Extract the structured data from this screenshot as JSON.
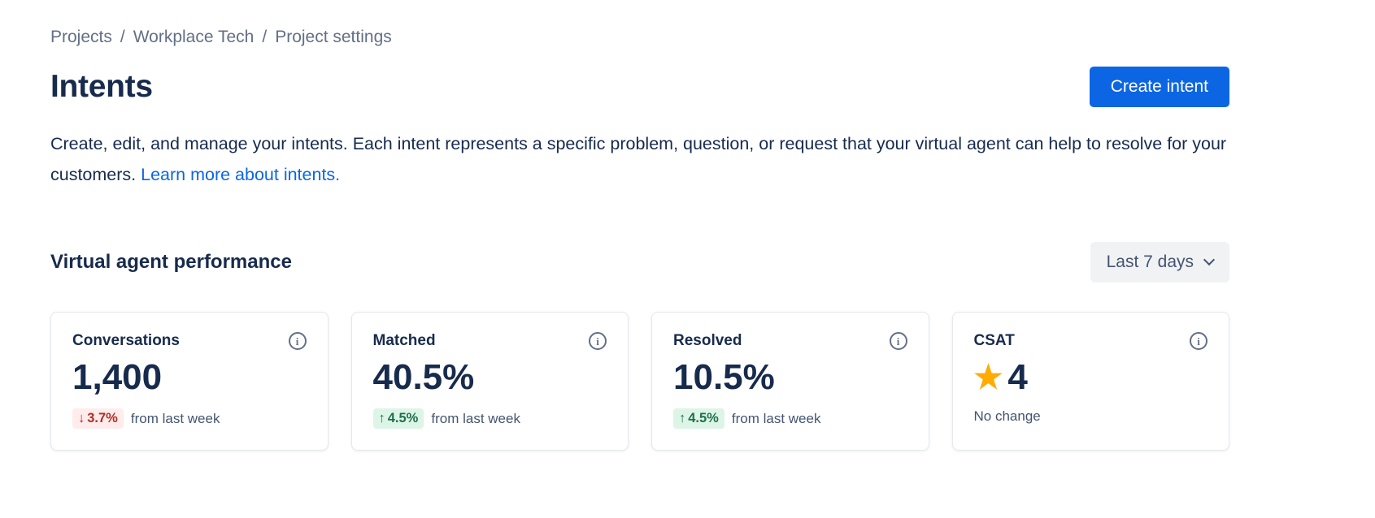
{
  "breadcrumb": {
    "separator": "/",
    "items": [
      "Projects",
      "Workplace Tech",
      "Project settings"
    ]
  },
  "header": {
    "title": "Intents",
    "create_button_label": "Create intent"
  },
  "description": {
    "text": "Create, edit, and manage your intents. Each intent represents a specific problem, question, or request that your virtual agent can help to resolve for your customers.",
    "link_label": "Learn more about intents."
  },
  "performance": {
    "heading": "Virtual agent performance",
    "time_range": {
      "selected": "Last 7 days",
      "chevron_icon": "chevron-down-icon"
    }
  },
  "colors": {
    "accent_blue": "#0C66E4",
    "text_dark": "#172B4D",
    "text_gray": "#626F86",
    "negative_text": "#AE2E24",
    "negative_bg": "#FFECEB",
    "positive_text": "#216E4E",
    "positive_bg": "#DCF5E7",
    "star_yellow": "#FFAB00"
  },
  "cards": [
    {
      "label": "Conversations",
      "info_icon": "info-icon",
      "value": "1,400",
      "delta": {
        "arrow": "↓",
        "percent": "3.7%",
        "direction": "down"
      },
      "note": "from last week"
    },
    {
      "label": "Matched",
      "info_icon": "info-icon",
      "value": "40.5%",
      "delta": {
        "arrow": "↑",
        "percent": "4.5%",
        "direction": "up"
      },
      "note": "from last week"
    },
    {
      "label": "Resolved",
      "info_icon": "info-icon",
      "value": "10.5%",
      "delta": {
        "arrow": "↑",
        "percent": "4.5%",
        "direction": "up"
      },
      "note": "from last week"
    },
    {
      "label": "CSAT",
      "info_icon": "info-icon",
      "star_icon": "star-icon",
      "value": "4",
      "delta": null,
      "note": "No change"
    }
  ]
}
